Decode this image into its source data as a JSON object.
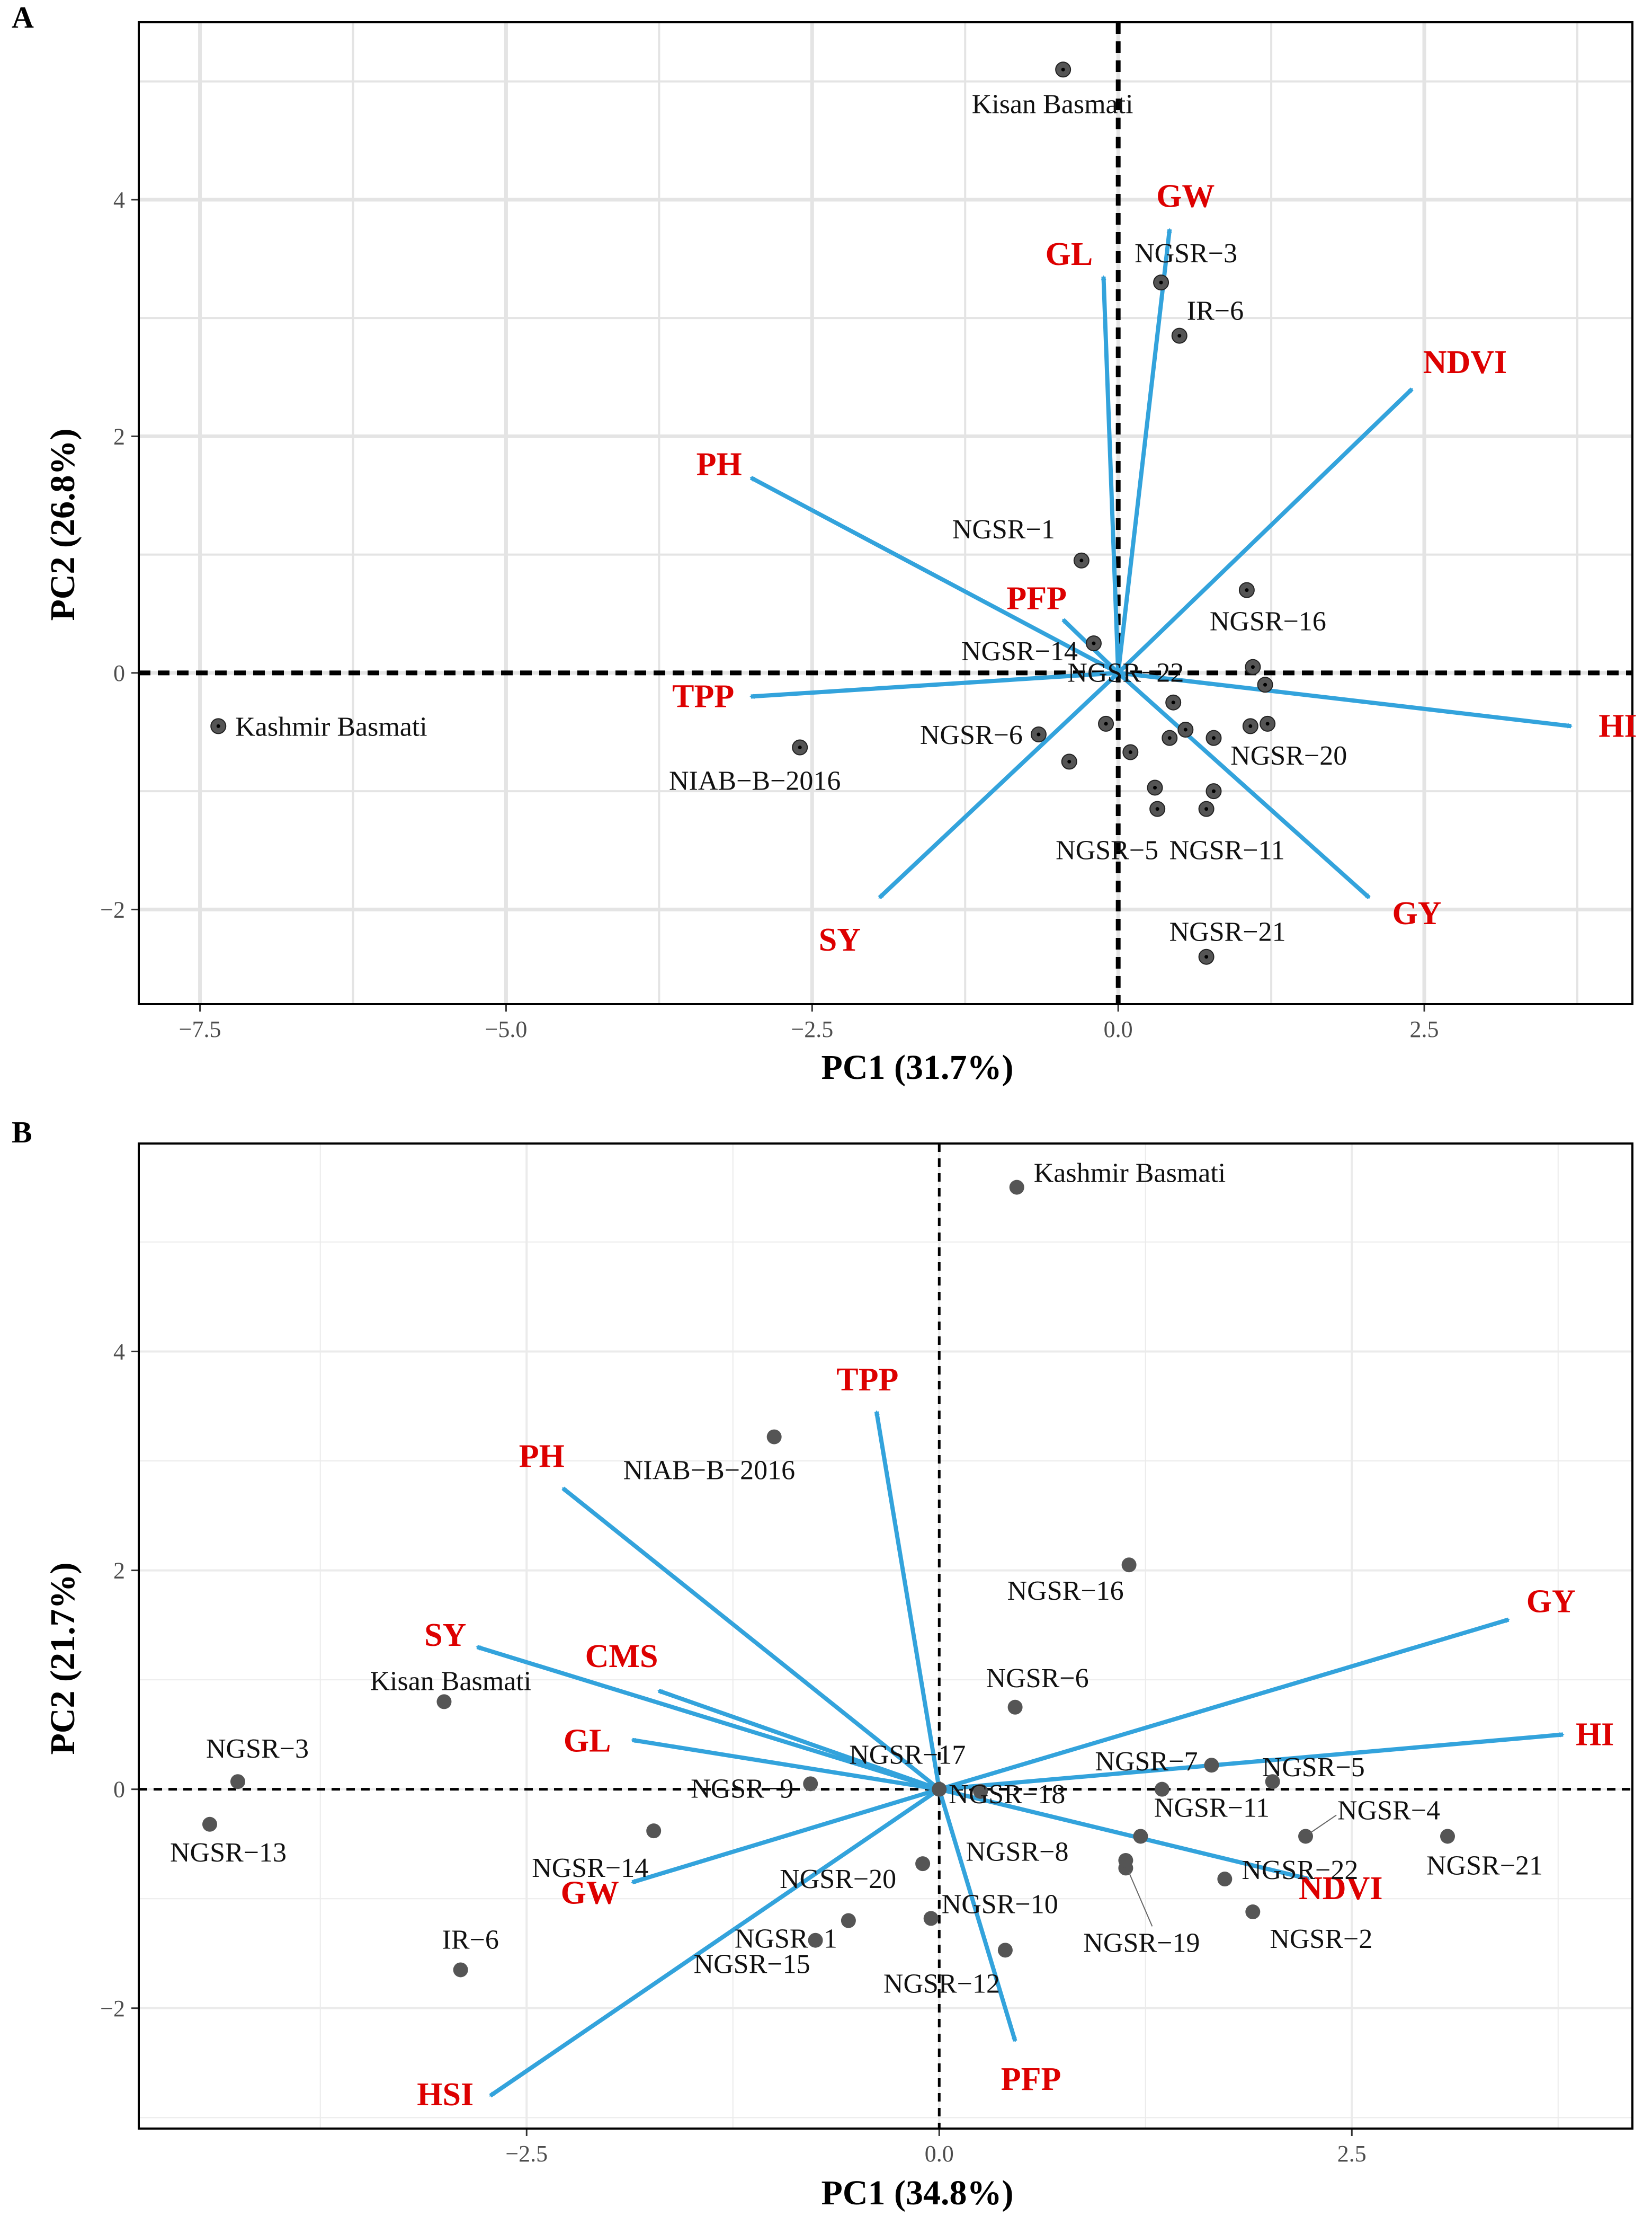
{
  "chart_data": [
    {
      "panel_label": "A",
      "type": "scatter",
      "title": "",
      "xlabel": "PC1 (31.7%)",
      "ylabel": "PC2 (26.8%)",
      "xlim": [
        -8.0,
        4.2
      ],
      "ylim": [
        -2.8,
        5.5
      ],
      "xticks": [
        -7.5,
        -5.0,
        -2.5,
        0.0,
        2.5
      ],
      "xtick_labels": [
        "−7.5",
        "−5.0",
        "−2.5",
        "0.0",
        "2.5"
      ],
      "yticks": [
        -2,
        0,
        2,
        4
      ],
      "ytick_labels": [
        "−2",
        "0",
        "2",
        "4"
      ],
      "grid": true,
      "colors": {
        "point": "#555555",
        "arrow": "#33a3dc",
        "variable_label": "#dd0000"
      },
      "points": [
        {
          "label": "Kisan Basmati",
          "x": -0.45,
          "y": 5.1
        },
        {
          "label": "NGSR−3",
          "x": 0.35,
          "y": 3.3
        },
        {
          "label": "IR−6",
          "x": 0.5,
          "y": 2.85
        },
        {
          "label": "NGSR−1",
          "x": -0.3,
          "y": 0.95
        },
        {
          "label": "NGSR−14",
          "x": -0.2,
          "y": 0.25
        },
        {
          "label": "NGSR−16",
          "x": 1.05,
          "y": 0.7
        },
        {
          "label": "NGSR−22",
          "x": 1.1,
          "y": 0.05
        },
        {
          "label": "",
          "x": 1.2,
          "y": -0.1
        },
        {
          "label": "NGSR−6",
          "x": -0.65,
          "y": -0.52
        },
        {
          "label": "",
          "x": -0.1,
          "y": -0.43
        },
        {
          "label": "",
          "x": 0.1,
          "y": -0.67
        },
        {
          "label": "",
          "x": -0.4,
          "y": -0.75
        },
        {
          "label": "",
          "x": 0.45,
          "y": -0.25
        },
        {
          "label": "",
          "x": 0.55,
          "y": -0.48
        },
        {
          "label": "",
          "x": 0.42,
          "y": -0.55
        },
        {
          "label": "",
          "x": 0.78,
          "y": -0.55
        },
        {
          "label": "",
          "x": 1.08,
          "y": -0.45
        },
        {
          "label": "NGSR−20",
          "x": 1.22,
          "y": -0.43
        },
        {
          "label": "",
          "x": 0.3,
          "y": -0.97
        },
        {
          "label": "NGSR−5",
          "x": 0.32,
          "y": -1.15
        },
        {
          "label": "",
          "x": 0.78,
          "y": -1.0
        },
        {
          "label": "NGSR−11",
          "x": 0.72,
          "y": -1.15
        },
        {
          "label": "NGSR−21",
          "x": 0.72,
          "y": -2.4
        },
        {
          "label": "NIAB−B−2016",
          "x": -2.6,
          "y": -0.63
        },
        {
          "label": "Kashmir Basmati",
          "x": -7.35,
          "y": -0.45
        }
      ],
      "vectors": [
        {
          "name": "GW",
          "x": 0.42,
          "y": 3.75
        },
        {
          "name": "GL",
          "x": -0.12,
          "y": 3.35
        },
        {
          "name": "NDVI",
          "x": 2.4,
          "y": 2.4
        },
        {
          "name": "PH",
          "x": -3.0,
          "y": 1.65
        },
        {
          "name": "PFP",
          "x": -0.45,
          "y": 0.45
        },
        {
          "name": "TPP",
          "x": -3.0,
          "y": -0.2
        },
        {
          "name": "HI",
          "x": 3.7,
          "y": -0.45
        },
        {
          "name": "SY",
          "x": -1.95,
          "y": -1.9
        },
        {
          "name": "GY",
          "x": 2.05,
          "y": -1.9
        }
      ]
    },
    {
      "panel_label": "B",
      "type": "scatter",
      "title": "",
      "xlabel": "PC1 (34.8%)",
      "ylabel": "PC2 (21.7%)",
      "xlim": [
        -4.85,
        4.2
      ],
      "ylim": [
        -3.1,
        5.9
      ],
      "xticks": [
        -2.5,
        0.0,
        2.5
      ],
      "xtick_labels": [
        "−2.5",
        "0.0",
        "2.5"
      ],
      "yticks": [
        -2,
        0,
        2,
        4
      ],
      "ytick_labels": [
        "−2",
        "0",
        "2",
        "4"
      ],
      "grid": true,
      "colors": {
        "point": "#555555",
        "arrow": "#33a3dc",
        "variable_label": "#dd0000"
      },
      "points": [
        {
          "label": "Kashmir Basmati",
          "x": 0.47,
          "y": 5.5
        },
        {
          "label": "NIAB−B−2016",
          "x": -1.0,
          "y": 3.22
        },
        {
          "label": "NGSR−16",
          "x": 1.15,
          "y": 2.05
        },
        {
          "label": "NGSR−6",
          "x": 0.46,
          "y": 0.75
        },
        {
          "label": "Kisan Basmati",
          "x": -3.0,
          "y": 0.8
        },
        {
          "label": "NGSR−3",
          "x": -4.25,
          "y": 0.07
        },
        {
          "label": "NGSR−13",
          "x": -4.42,
          "y": -0.32
        },
        {
          "label": "NGSR−17",
          "x": 0.0,
          "y": 0.0
        },
        {
          "label": "NGSR−9",
          "x": -0.78,
          "y": 0.05
        },
        {
          "label": "NGSR−14",
          "x": -1.73,
          "y": -0.38
        },
        {
          "label": "NGSR−20",
          "x": -0.1,
          "y": -0.68
        },
        {
          "label": "NGSR−1",
          "x": -0.55,
          "y": -1.2
        },
        {
          "label": "NGSR−10",
          "x": -0.05,
          "y": -1.18
        },
        {
          "label": "NGSR−15",
          "x": -0.75,
          "y": -1.38
        },
        {
          "label": "NGSR−12",
          "x": 0.4,
          "y": -1.47
        },
        {
          "label": "IR−6",
          "x": -2.9,
          "y": -1.65
        },
        {
          "label": "NGSR−18",
          "x": 0.25,
          "y": -0.02
        },
        {
          "label": "NGSR−7",
          "x": 1.65,
          "y": 0.22
        },
        {
          "label": "NGSR−5",
          "x": 2.02,
          "y": 0.07
        },
        {
          "label": "NGSR−11",
          "x": 1.35,
          "y": 0.0
        },
        {
          "label": "NGSR−8",
          "x": 1.22,
          "y": -0.43
        },
        {
          "label": "NGSR−4",
          "x": 2.22,
          "y": -0.43
        },
        {
          "label": "NGSR−21",
          "x": 3.08,
          "y": -0.43
        },
        {
          "label": "NGSR−22",
          "x": 1.73,
          "y": -0.82
        },
        {
          "label": "NGSR−19",
          "x": 1.13,
          "y": -0.72
        },
        {
          "label": "",
          "x": 1.13,
          "y": -0.65
        },
        {
          "label": "NGSR−2",
          "x": 1.9,
          "y": -1.12
        }
      ],
      "vectors": [
        {
          "name": "TPP",
          "x": -0.38,
          "y": 3.45
        },
        {
          "name": "PH",
          "x": -2.28,
          "y": 2.75
        },
        {
          "name": "SY",
          "x": -2.8,
          "y": 1.3
        },
        {
          "name": "CMS",
          "x": -1.7,
          "y": 0.9
        },
        {
          "name": "GL",
          "x": -1.86,
          "y": 0.45
        },
        {
          "name": "GW",
          "x": -1.86,
          "y": -0.85
        },
        {
          "name": "HSI",
          "x": -2.72,
          "y": -2.8
        },
        {
          "name": "PFP",
          "x": 0.46,
          "y": -2.3
        },
        {
          "name": "NDVI",
          "x": 2.24,
          "y": -0.82
        },
        {
          "name": "HI",
          "x": 3.78,
          "y": 0.5
        },
        {
          "name": "GY",
          "x": 3.45,
          "y": 1.55
        }
      ]
    }
  ]
}
